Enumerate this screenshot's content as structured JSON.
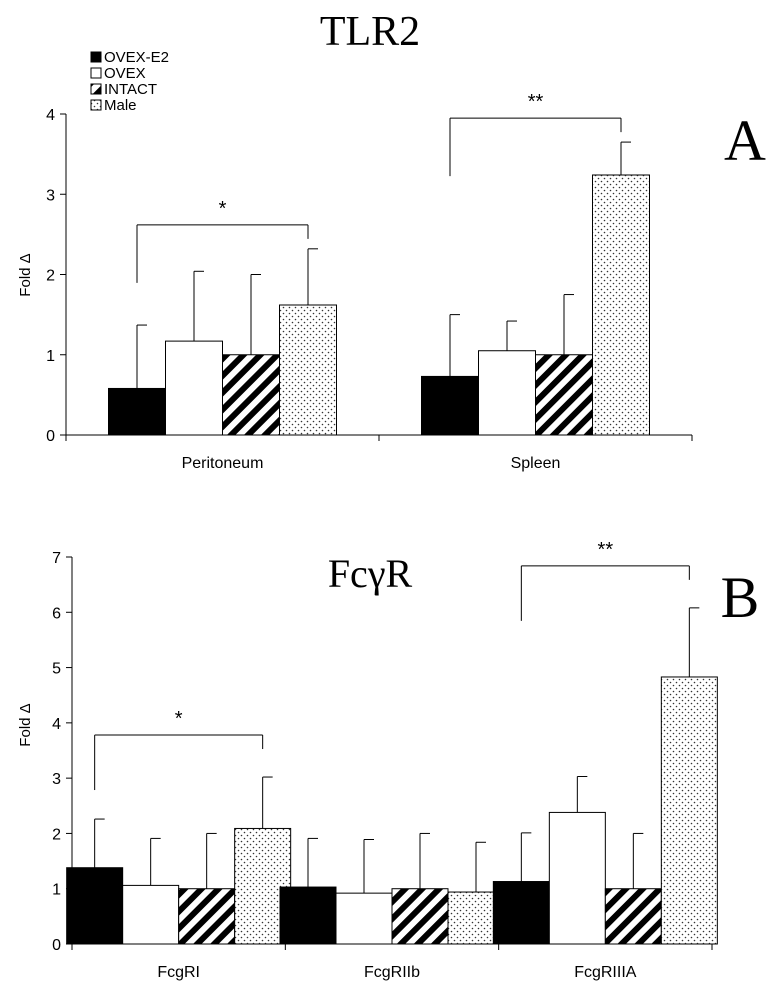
{
  "chart_data": [
    {
      "type": "bar",
      "title": "TLR2",
      "panel_letter": "A",
      "ylabel": "Fold Δ",
      "xlabel": "",
      "ylim": [
        0,
        4
      ],
      "yticks": [
        0,
        1,
        2,
        3,
        4
      ],
      "categories": [
        "Peritoneum",
        "Spleen"
      ],
      "series": [
        {
          "name": "OVEX-E2",
          "values": [
            0.58,
            0.73
          ],
          "errors": [
            0.79,
            0.77
          ]
        },
        {
          "name": "OVEX",
          "values": [
            1.17,
            1.05
          ],
          "errors": [
            0.87,
            0.37
          ]
        },
        {
          "name": "INTACT",
          "values": [
            1.0,
            1.0
          ],
          "errors": [
            1.0,
            0.75
          ]
        },
        {
          "name": "Male",
          "values": [
            1.62,
            3.24
          ],
          "errors": [
            0.7,
            0.41
          ]
        }
      ],
      "significance": [
        {
          "category": "Peritoneum",
          "label": "*"
        },
        {
          "category": "Spleen",
          "label": "**"
        }
      ],
      "legend": "top-left",
      "grid": false
    },
    {
      "type": "bar",
      "title": "FcγR",
      "panel_letter": "B",
      "ylabel": "Fold Δ",
      "xlabel": "",
      "ylim": [
        0,
        7
      ],
      "yticks": [
        0,
        1,
        2,
        3,
        4,
        5,
        6,
        7
      ],
      "categories": [
        "FcgRI",
        "FcgRIIb",
        "FcgRIIIA"
      ],
      "series": [
        {
          "name": "OVEX-E2",
          "values": [
            1.38,
            1.03,
            1.13
          ],
          "errors": [
            0.88,
            0.88,
            0.88
          ]
        },
        {
          "name": "OVEX",
          "values": [
            1.06,
            0.92,
            2.38
          ],
          "errors": [
            0.85,
            0.97,
            0.65
          ]
        },
        {
          "name": "INTACT",
          "values": [
            1.0,
            1.0,
            1.0
          ],
          "errors": [
            1.0,
            1.0,
            1.0
          ]
        },
        {
          "name": "Male",
          "values": [
            2.09,
            0.94,
            4.83
          ],
          "errors": [
            0.93,
            0.9,
            1.25
          ]
        }
      ],
      "significance": [
        {
          "category": "FcgRI",
          "label": "*"
        },
        {
          "category": "FcgRIIIA",
          "label": "**"
        }
      ],
      "legend": "none",
      "grid": false
    }
  ]
}
